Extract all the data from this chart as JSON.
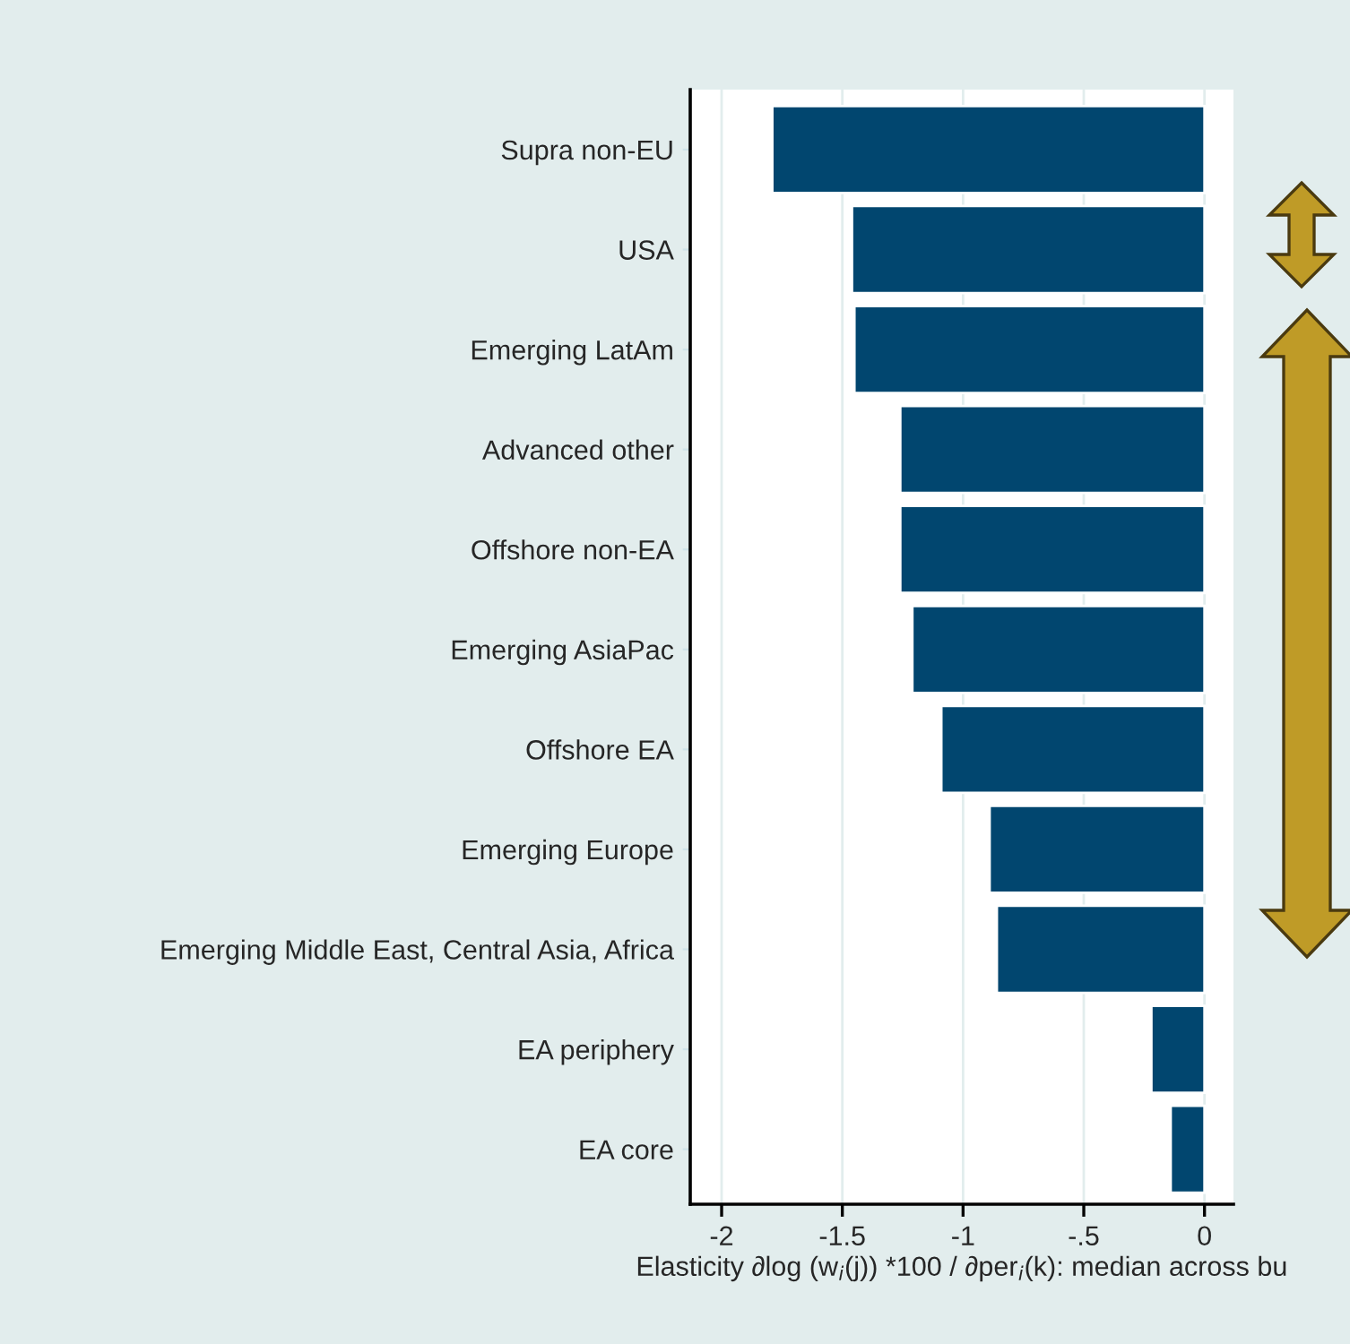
{
  "chart_data": {
    "type": "bar",
    "orientation": "horizontal",
    "categories": [
      "Supra non-EU",
      "USA",
      "Emerging LatAm",
      "Advanced other",
      "Offshore non-EA",
      "Emerging AsiaPac",
      "Offshore EA",
      "Emerging Europe",
      "Emerging Middle East, Central Asia, Africa",
      "EA periphery",
      "EA core"
    ],
    "values": [
      -1.79,
      -1.46,
      -1.45,
      -1.26,
      -1.26,
      -1.21,
      -1.09,
      -0.89,
      -0.86,
      -0.22,
      -0.14
    ],
    "color": "#01466f",
    "xlabel": "Elasticity ∂log (w$_{i}$(j)) *100 / ∂per$_{i}$(k): median across bu",
    "xlim": [
      -2.13,
      0.12
    ],
    "xticks": [
      -2,
      -1.5,
      -1,
      {
        "value": -0.5,
        "label": "-.5"
      },
      0
    ],
    "grid": "x",
    "legend": false
  }
}
